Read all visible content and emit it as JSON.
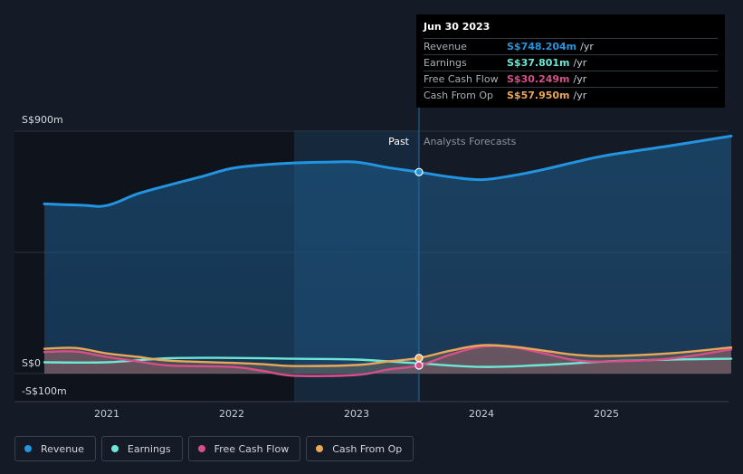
{
  "chart_data": {
    "type": "line",
    "currency": "S$",
    "x_range": [
      2020.5,
      2026.0
    ],
    "y_range": [
      -100,
      900
    ],
    "x_ticks": [
      {
        "value": 2021,
        "label": "2021"
      },
      {
        "value": 2022,
        "label": "2022"
      },
      {
        "value": 2023,
        "label": "2023"
      },
      {
        "value": 2024,
        "label": "2024"
      },
      {
        "value": 2025,
        "label": "2025"
      }
    ],
    "y_labels": [
      {
        "value": 900,
        "label": "S$900m"
      },
      {
        "value": 0,
        "label": "S$0"
      },
      {
        "value": -100,
        "label": "-S$100m"
      }
    ],
    "gridlines": [
      900,
      450,
      0
    ],
    "past_label": "Past",
    "forecast_label": "Analysts Forecasts",
    "past_end": 2023.5,
    "highlight_start": 2022.5,
    "series": [
      {
        "name": "Revenue",
        "color": "#2394df",
        "fill": true,
        "points": [
          [
            2020.5,
            630
          ],
          [
            2020.8,
            625
          ],
          [
            2021.0,
            624
          ],
          [
            2021.25,
            668
          ],
          [
            2021.5,
            700
          ],
          [
            2021.75,
            730
          ],
          [
            2022.0,
            762
          ],
          [
            2022.25,
            775
          ],
          [
            2022.5,
            782
          ],
          [
            2022.75,
            785
          ],
          [
            2023.0,
            785
          ],
          [
            2023.25,
            765
          ],
          [
            2023.5,
            748.204
          ],
          [
            2023.75,
            730
          ],
          [
            2024.0,
            720
          ],
          [
            2024.25,
            735
          ],
          [
            2024.5,
            758
          ],
          [
            2024.75,
            785
          ],
          [
            2025.0,
            810
          ],
          [
            2025.5,
            845
          ],
          [
            2026.0,
            882
          ]
        ]
      },
      {
        "name": "Earnings",
        "color": "#6ee7d8",
        "fill": false,
        "points": [
          [
            2020.5,
            42
          ],
          [
            2021.0,
            42
          ],
          [
            2021.5,
            57
          ],
          [
            2022.0,
            58
          ],
          [
            2022.5,
            55
          ],
          [
            2023.0,
            52
          ],
          [
            2023.5,
            37.801
          ],
          [
            2024.0,
            25
          ],
          [
            2024.5,
            32
          ],
          [
            2025.0,
            45
          ],
          [
            2025.5,
            52
          ],
          [
            2026.0,
            55
          ]
        ]
      },
      {
        "name": "Free Cash Flow",
        "color": "#d64f8a",
        "fill": true,
        "points": [
          [
            2020.5,
            80
          ],
          [
            2020.75,
            82
          ],
          [
            2021.0,
            62
          ],
          [
            2021.25,
            45
          ],
          [
            2021.5,
            30
          ],
          [
            2022.0,
            25
          ],
          [
            2022.25,
            10
          ],
          [
            2022.5,
            -8
          ],
          [
            2023.0,
            -5
          ],
          [
            2023.25,
            15
          ],
          [
            2023.5,
            30.249
          ],
          [
            2023.75,
            70
          ],
          [
            2024.0,
            100
          ],
          [
            2024.25,
            98
          ],
          [
            2024.5,
            75
          ],
          [
            2024.75,
            50
          ],
          [
            2025.0,
            45
          ],
          [
            2025.5,
            55
          ],
          [
            2026.0,
            90
          ]
        ]
      },
      {
        "name": "Cash From Op",
        "color": "#e9a75a",
        "fill": true,
        "points": [
          [
            2020.5,
            92
          ],
          [
            2020.75,
            95
          ],
          [
            2021.0,
            75
          ],
          [
            2021.25,
            62
          ],
          [
            2021.5,
            48
          ],
          [
            2022.0,
            40
          ],
          [
            2022.25,
            35
          ],
          [
            2022.5,
            28
          ],
          [
            2023.0,
            32
          ],
          [
            2023.25,
            45
          ],
          [
            2023.5,
            57.95
          ],
          [
            2023.75,
            85
          ],
          [
            2024.0,
            105
          ],
          [
            2024.25,
            100
          ],
          [
            2024.5,
            85
          ],
          [
            2024.75,
            70
          ],
          [
            2025.0,
            65
          ],
          [
            2025.5,
            75
          ],
          [
            2026.0,
            97
          ]
        ]
      }
    ],
    "markers": [
      {
        "series": "Revenue",
        "x": 2023.5,
        "y": 748.204
      },
      {
        "series": "Free Cash Flow",
        "x": 2023.5,
        "y": 30.249
      },
      {
        "series": "Cash From Op",
        "x": 2023.5,
        "y": 57.95
      }
    ]
  },
  "tooltip": {
    "date": "Jun 30 2023",
    "rows": [
      {
        "label": "Revenue",
        "value": "S$748.204m",
        "unit": "/yr",
        "color": "#2394df"
      },
      {
        "label": "Earnings",
        "value": "S$37.801m",
        "unit": "/yr",
        "color": "#6ee7d8"
      },
      {
        "label": "Free Cash Flow",
        "value": "S$30.249m",
        "unit": "/yr",
        "color": "#d64f8a"
      },
      {
        "label": "Cash From Op",
        "value": "S$57.950m",
        "unit": "/yr",
        "color": "#e9a75a"
      }
    ]
  },
  "legend": [
    {
      "label": "Revenue",
      "color": "#2394df"
    },
    {
      "label": "Earnings",
      "color": "#6ee7d8"
    },
    {
      "label": "Free Cash Flow",
      "color": "#d64f8a"
    },
    {
      "label": "Cash From Op",
      "color": "#e9a75a"
    }
  ]
}
